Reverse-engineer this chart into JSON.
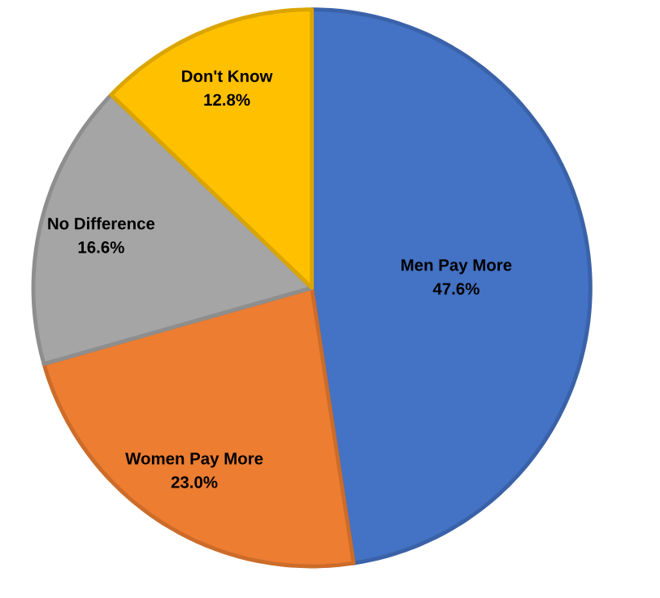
{
  "chart_data": {
    "type": "pie",
    "categories": [
      "Men Pay More",
      "Women Pay More",
      "No Difference",
      "Don't Know"
    ],
    "values": [
      47.6,
      23.0,
      16.6,
      12.8
    ],
    "colors": [
      "#4472c4",
      "#ed7d31",
      "#a5a5a5",
      "#ffc000"
    ],
    "value_labels": [
      "47.6%",
      "23.0%",
      "16.6%",
      "12.8%"
    ]
  }
}
